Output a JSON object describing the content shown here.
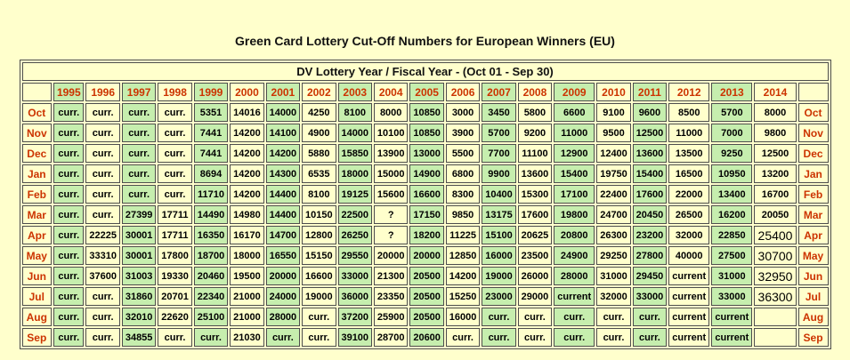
{
  "page": {
    "title": "Green Card Lottery Cut-Off Numbers for European Winners (EU)"
  },
  "colors": {
    "page_background": "#ffffcc",
    "green_cell": "#c6eeae",
    "yellow_cell": "#ffffcc",
    "red_text": "#cc3300",
    "border": "#4d4d4d"
  },
  "table": {
    "header": "DV Lottery Year / Fiscal Year - (Oct 01 - Sep 30)",
    "years": [
      "1995",
      "1996",
      "1997",
      "1998",
      "1999",
      "2000",
      "2001",
      "2002",
      "2003",
      "2004",
      "2005",
      "2006",
      "2007",
      "2008",
      "2009",
      "2010",
      "2011",
      "2012",
      "2013",
      "2014"
    ],
    "rows": [
      {
        "month": "Oct",
        "values": [
          "curr.",
          "curr.",
          "curr.",
          "curr.",
          "5351",
          "14016",
          "14000",
          "4250",
          "8100",
          "8000",
          "10850",
          "3000",
          "3450",
          "5800",
          "6600",
          "9100",
          "9600",
          "8500",
          "5700",
          "8000"
        ]
      },
      {
        "month": "Nov",
        "values": [
          "curr.",
          "curr.",
          "curr.",
          "curr.",
          "7441",
          "14200",
          "14100",
          "4900",
          "14000",
          "10100",
          "10850",
          "3900",
          "5700",
          "9200",
          "11000",
          "9500",
          "12500",
          "11000",
          "7000",
          "9800"
        ]
      },
      {
        "month": "Dec",
        "values": [
          "curr.",
          "curr.",
          "curr.",
          "curr.",
          "7441",
          "14200",
          "14200",
          "5880",
          "15850",
          "13900",
          "13000",
          "5500",
          "7700",
          "11100",
          "12900",
          "12400",
          "13600",
          "13500",
          "9250",
          "12500"
        ]
      },
      {
        "month": "Jan",
        "values": [
          "curr.",
          "curr.",
          "curr.",
          "curr.",
          "8694",
          "14200",
          "14300",
          "6535",
          "18000",
          "15000",
          "14900",
          "6800",
          "9900",
          "13600",
          "15400",
          "19750",
          "15400",
          "16500",
          "10950",
          "13200"
        ]
      },
      {
        "month": "Feb",
        "values": [
          "curr.",
          "curr.",
          "curr.",
          "curr.",
          "11710",
          "14200",
          "14400",
          "8100",
          "19125",
          "15600",
          "16600",
          "8300",
          "10400",
          "15300",
          "17100",
          "22400",
          "17600",
          "22000",
          "13400",
          "16700"
        ]
      },
      {
        "month": "Mar",
        "values": [
          "curr.",
          "curr.",
          "27399",
          "17711",
          "14490",
          "14980",
          "14400",
          "10150",
          "22500",
          "?",
          "17150",
          "9850",
          "13175",
          "17600",
          "19800",
          "24700",
          "20450",
          "26500",
          "16200",
          "20050"
        ]
      },
      {
        "month": "Apr",
        "values": [
          "curr.",
          "22225",
          "30001",
          "17711",
          "16350",
          "16170",
          "14700",
          "12800",
          "26250",
          "?",
          "18200",
          "11225",
          "15100",
          "20625",
          "20800",
          "26300",
          "23200",
          "32000",
          "22850",
          {
            "v": "25400",
            "big": true
          }
        ]
      },
      {
        "month": "May",
        "values": [
          "curr.",
          "33310",
          "30001",
          "17800",
          "18700",
          "18000",
          "16550",
          "15150",
          "29550",
          "20000",
          "20000",
          "12850",
          "16000",
          "23500",
          "24900",
          "29250",
          "27800",
          "40000",
          "27500",
          {
            "v": "30700",
            "big": true
          }
        ]
      },
      {
        "month": "Jun",
        "values": [
          "curr.",
          "37600",
          "31003",
          "19330",
          "20460",
          "19500",
          "20000",
          "16600",
          "33000",
          "21300",
          "20500",
          "14200",
          "19000",
          "26000",
          "28000",
          "31000",
          "29450",
          "current",
          "31000",
          {
            "v": "32950",
            "big": true
          }
        ]
      },
      {
        "month": "Jul",
        "values": [
          "curr.",
          "curr.",
          "31860",
          "20701",
          "22340",
          "21000",
          "24000",
          "19000",
          "36000",
          "23350",
          "20500",
          "15250",
          "23000",
          "29000",
          "current",
          "32000",
          "33000",
          "current",
          "33000",
          {
            "v": "36300",
            "big": true
          }
        ]
      },
      {
        "month": "Aug",
        "values": [
          "curr.",
          "curr.",
          "32010",
          "22620",
          "25100",
          "21000",
          "28000",
          "curr.",
          "37200",
          "25900",
          "20500",
          "16000",
          "curr.",
          "curr.",
          "curr.",
          "curr.",
          "curr.",
          "current",
          "current",
          ""
        ]
      },
      {
        "month": "Sep",
        "values": [
          "curr.",
          "curr.",
          "34855",
          "curr.",
          "curr.",
          "21030",
          "curr.",
          "curr.",
          "39100",
          "28700",
          "20600",
          "curr.",
          "curr.",
          "curr.",
          "curr.",
          "curr.",
          "curr.",
          "current",
          "current",
          ""
        ]
      }
    ]
  }
}
